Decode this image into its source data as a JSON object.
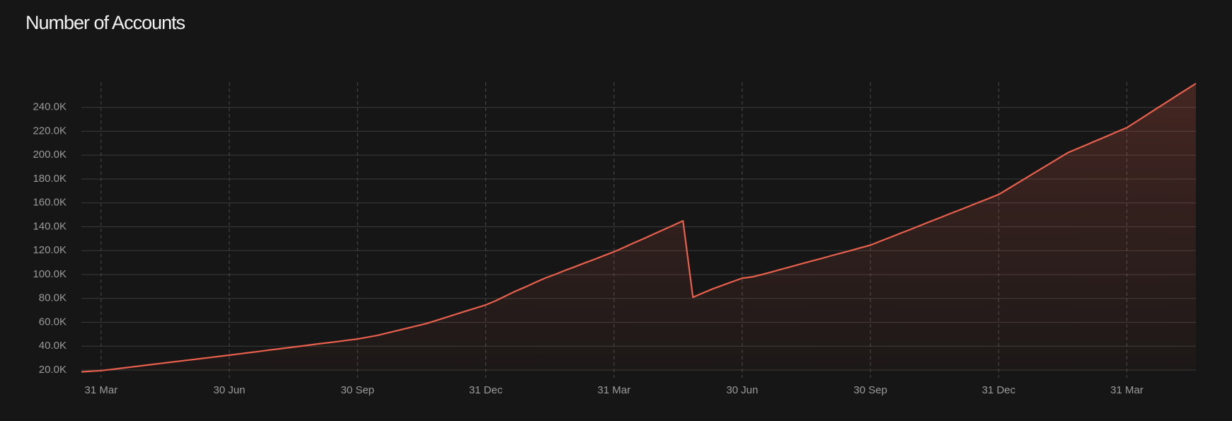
{
  "chart_data": {
    "type": "line",
    "title": "Number of Accounts",
    "color": "#e8604c",
    "grid": true,
    "ylim": [
      20000,
      260000
    ],
    "yticks": [
      {
        "value": 20000,
        "label": "20.0K"
      },
      {
        "value": 40000,
        "label": "40.0K"
      },
      {
        "value": 60000,
        "label": "60.0K"
      },
      {
        "value": 80000,
        "label": "80.0K"
      },
      {
        "value": 100000,
        "label": "100.0K"
      },
      {
        "value": 120000,
        "label": "120.0K"
      },
      {
        "value": 140000,
        "label": "140.0K"
      },
      {
        "value": 160000,
        "label": "160.0K"
      },
      {
        "value": 180000,
        "label": "180.0K"
      },
      {
        "value": 200000,
        "label": "200.0K"
      },
      {
        "value": 220000,
        "label": "220.0K"
      },
      {
        "value": 240000,
        "label": "240.0K"
      }
    ],
    "categories": [
      null,
      null,
      "31 Mar",
      null,
      null,
      null,
      null,
      null,
      null,
      null,
      null,
      null,
      null,
      null,
      null,
      "30 Jun",
      null,
      null,
      null,
      null,
      null,
      null,
      null,
      null,
      null,
      null,
      null,
      null,
      "30 Sep",
      null,
      null,
      null,
      null,
      null,
      null,
      null,
      null,
      null,
      null,
      null,
      null,
      "31 Dec",
      null,
      null,
      null,
      null,
      null,
      null,
      null,
      null,
      null,
      null,
      null,
      null,
      "31 Mar",
      null,
      null,
      null,
      null,
      null,
      null,
      null,
      null,
      null,
      null,
      null,
      null,
      "30 Jun",
      null,
      null,
      null,
      null,
      null,
      null,
      null,
      null,
      null,
      null,
      null,
      null,
      "30 Sep",
      null,
      null,
      null,
      null,
      null,
      null,
      null,
      null,
      null,
      null,
      null,
      null,
      "31 Dec",
      null,
      null,
      null,
      null,
      null,
      null,
      null,
      null,
      null,
      null,
      null,
      null,
      "31 Mar",
      null,
      null,
      null,
      null,
      null,
      null,
      null
    ],
    "values": [
      18500,
      19000,
      19500,
      20500,
      21500,
      22500,
      23500,
      24500,
      25500,
      26500,
      27500,
      28500,
      29500,
      30500,
      31500,
      32500,
      33500,
      34600,
      35600,
      36700,
      37700,
      38700,
      39800,
      40800,
      41900,
      42900,
      43900,
      45000,
      46000,
      47500,
      49000,
      51000,
      53000,
      55000,
      57000,
      59000,
      61600,
      64200,
      66800,
      69400,
      72000,
      74600,
      78000,
      82000,
      86000,
      89500,
      93300,
      97000,
      100000,
      103300,
      106400,
      109600,
      112700,
      115900,
      119000,
      122700,
      126400,
      130000,
      133800,
      137500,
      141200,
      145000,
      81000,
      84500,
      88000,
      91000,
      94000,
      97000,
      98000,
      100000,
      102200,
      104500,
      106700,
      109000,
      111200,
      113400,
      115700,
      117900,
      120100,
      122400,
      124600,
      127900,
      131100,
      134400,
      137600,
      140900,
      144200,
      147400,
      150700,
      153900,
      157200,
      160500,
      163700,
      167000,
      172000,
      177000,
      182000,
      187000,
      192000,
      197000,
      202000,
      205500,
      209000,
      212500,
      216000,
      219500,
      223000,
      228300,
      233600,
      238900,
      244200,
      249500,
      254800,
      260000
    ]
  }
}
